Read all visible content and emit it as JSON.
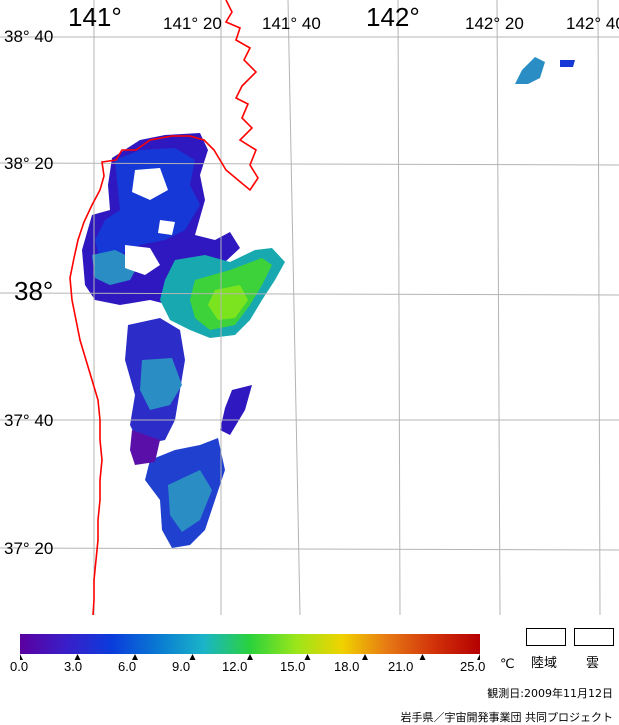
{
  "map": {
    "lon_labels": [
      {
        "text": "141°",
        "style": "big"
      },
      {
        "text": "141° 20",
        "style": "small"
      },
      {
        "text": "141° 40",
        "style": "small"
      },
      {
        "text": "142°",
        "style": "big"
      },
      {
        "text": "142° 20",
        "style": "small"
      },
      {
        "text": "142° 40",
        "style": "small"
      }
    ],
    "lat_labels": [
      {
        "text": "38° 40",
        "style": "small"
      },
      {
        "text": "38° 20",
        "style": "small"
      },
      {
        "text": "38°",
        "style": "big"
      },
      {
        "text": "37° 40",
        "style": "small"
      },
      {
        "text": "37° 20",
        "style": "small"
      }
    ],
    "colors": {
      "grid": "#b4b4b4",
      "coastline": "#ff0000",
      "background": "#ffffff"
    }
  },
  "colorbar": {
    "ticks": [
      "0.0",
      "3.0",
      "6.0",
      "9.0",
      "12.0",
      "15.0",
      "18.0",
      "21.0",
      "25.0"
    ],
    "unit": "℃",
    "stops": [
      "#5a00a0",
      "#3a1ec8",
      "#0a3cdc",
      "#0a7ad2",
      "#1ab4c8",
      "#2ad23c",
      "#9ae61a",
      "#f0d200",
      "#e67814",
      "#d2320a",
      "#b40000"
    ]
  },
  "legend": {
    "land_label": "陸域",
    "cloud_label": "雲"
  },
  "footer": {
    "observation_date": "観測日:2009年11月12日",
    "credit": "岩手県／宇宙開発事業団 共同プロジェクト"
  }
}
